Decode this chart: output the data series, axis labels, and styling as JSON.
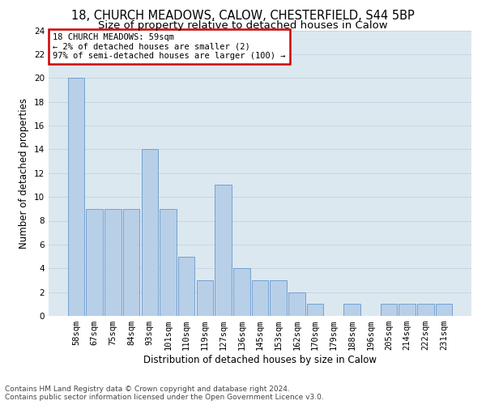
{
  "title1": "18, CHURCH MEADOWS, CALOW, CHESTERFIELD, S44 5BP",
  "title2": "Size of property relative to detached houses in Calow",
  "xlabel": "Distribution of detached houses by size in Calow",
  "ylabel": "Number of detached properties",
  "bin_labels": [
    "58sqm",
    "67sqm",
    "75sqm",
    "84sqm",
    "93sqm",
    "101sqm",
    "110sqm",
    "119sqm",
    "127sqm",
    "136sqm",
    "145sqm",
    "153sqm",
    "162sqm",
    "170sqm",
    "179sqm",
    "188sqm",
    "196sqm",
    "205sqm",
    "214sqm",
    "222sqm",
    "231sqm"
  ],
  "bar_values": [
    20,
    9,
    9,
    9,
    14,
    9,
    5,
    3,
    11,
    4,
    3,
    3,
    2,
    1,
    0,
    1,
    0,
    1,
    1,
    1,
    1
  ],
  "bar_color": "#b8cfe8",
  "bar_edge_color": "#6699cc",
  "annotation_box_text": "18 CHURCH MEADOWS: 59sqm\n← 2% of detached houses are smaller (2)\n97% of semi-detached houses are larger (100) →",
  "annotation_box_facecolor": "#ffffff",
  "annotation_box_edgecolor": "#cc0000",
  "ylim": [
    0,
    24
  ],
  "yticks": [
    0,
    2,
    4,
    6,
    8,
    10,
    12,
    14,
    16,
    18,
    20,
    22,
    24
  ],
  "grid_color": "#c8d4e0",
  "bg_color": "#dce8f0",
  "footnote": "Contains HM Land Registry data © Crown copyright and database right 2024.\nContains public sector information licensed under the Open Government Licence v3.0.",
  "title1_fontsize": 10.5,
  "title2_fontsize": 9.5,
  "xlabel_fontsize": 8.5,
  "ylabel_fontsize": 8.5,
  "tick_fontsize": 7.5,
  "annot_fontsize": 7.5,
  "footnote_fontsize": 6.5
}
